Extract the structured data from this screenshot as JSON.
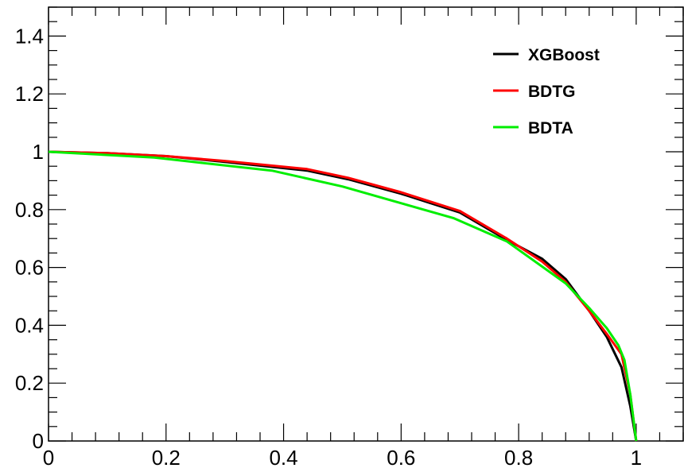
{
  "chart_data": {
    "type": "line",
    "title": "",
    "xlabel": "",
    "ylabel": "",
    "xlim": [
      0,
      1.08
    ],
    "ylim": [
      0,
      1.5
    ],
    "x_ticks": [
      0,
      0.2,
      0.4,
      0.6,
      0.8,
      1
    ],
    "x_tick_labels": [
      "0",
      "0.2",
      "0.4",
      "0.6",
      "0.8",
      "1"
    ],
    "y_ticks": [
      0,
      0.2,
      0.4,
      0.6,
      0.8,
      1,
      1.2,
      1.4
    ],
    "y_tick_labels": [
      "0",
      "0.2",
      "0.4",
      "0.6",
      "0.8",
      "1",
      "1.2",
      "1.4"
    ],
    "grid": false,
    "legend_position": "top-right",
    "series": [
      {
        "name": "XGBoost",
        "color": "#000000",
        "x": [
          0,
          0.1,
          0.2,
          0.3,
          0.44,
          0.51,
          0.6,
          0.7,
          0.78,
          0.84,
          0.88,
          0.92,
          0.95,
          0.975,
          0.99,
          1.0
        ],
        "y": [
          1.0,
          0.995,
          0.985,
          0.965,
          0.935,
          0.905,
          0.855,
          0.79,
          0.695,
          0.63,
          0.56,
          0.45,
          0.36,
          0.255,
          0.12,
          0.0
        ]
      },
      {
        "name": "BDTG",
        "color": "#ff0000",
        "x": [
          0,
          0.1,
          0.2,
          0.3,
          0.44,
          0.51,
          0.6,
          0.7,
          0.78,
          0.84,
          0.88,
          0.92,
          0.95,
          0.975,
          0.99,
          1.0
        ],
        "y": [
          1.0,
          0.995,
          0.985,
          0.968,
          0.94,
          0.91,
          0.86,
          0.795,
          0.7,
          0.62,
          0.55,
          0.45,
          0.37,
          0.3,
          0.16,
          0.0
        ]
      },
      {
        "name": "BDTA",
        "color": "#00ee00",
        "x": [
          0,
          0.18,
          0.38,
          0.5,
          0.69,
          0.78,
          0.88,
          0.92,
          0.95,
          0.97,
          0.98,
          0.99,
          1.0
        ],
        "y": [
          1.0,
          0.98,
          0.935,
          0.88,
          0.77,
          0.69,
          0.545,
          0.46,
          0.39,
          0.33,
          0.28,
          0.16,
          0.0
        ]
      }
    ]
  }
}
